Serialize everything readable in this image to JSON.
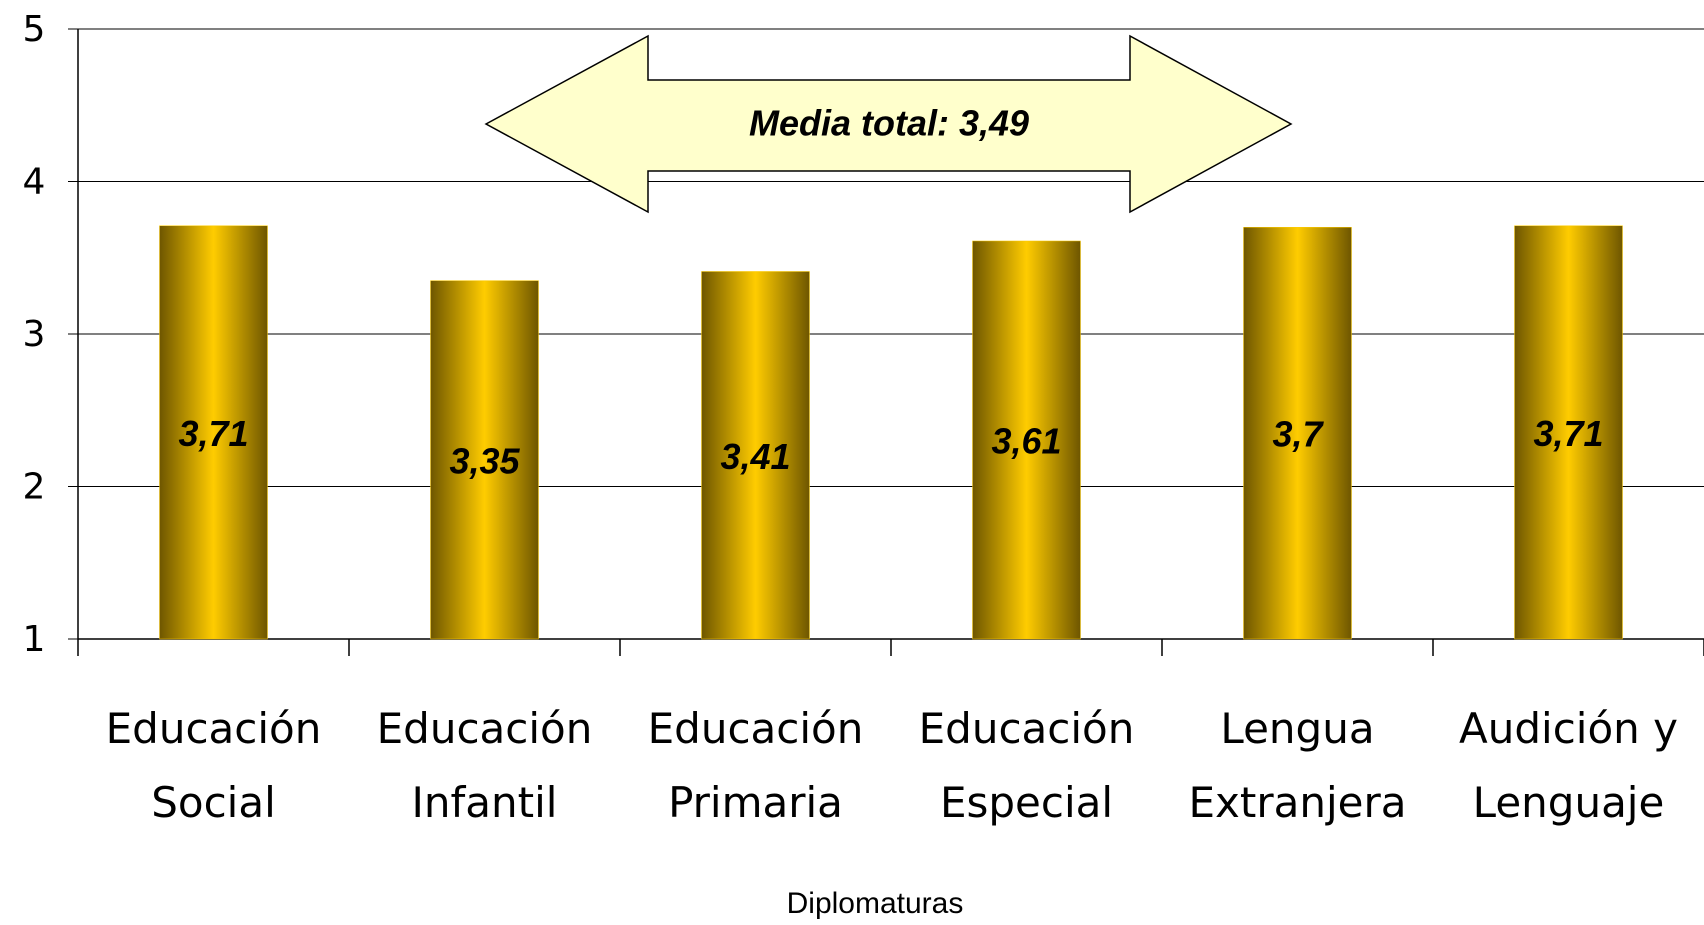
{
  "chart_data": {
    "type": "bar",
    "categories": [
      "Educación Social",
      "Educación Infantil",
      "Educación Primaria",
      "Educación Especial",
      "Lengua Extranjera",
      "Audición y Lenguaje"
    ],
    "values": [
      3.71,
      3.35,
      3.41,
      3.61,
      3.7,
      3.71
    ],
    "value_labels": [
      "3,71",
      "3,35",
      "3,41",
      "3,61",
      "3,7",
      "3,71"
    ],
    "color": "#ffcc00",
    "ylim": [
      1,
      5
    ],
    "yticks": [
      1,
      2,
      3,
      4,
      5
    ],
    "grid": true,
    "x_label": "Diplomaturas",
    "annotation": "Media total: 3,49"
  }
}
